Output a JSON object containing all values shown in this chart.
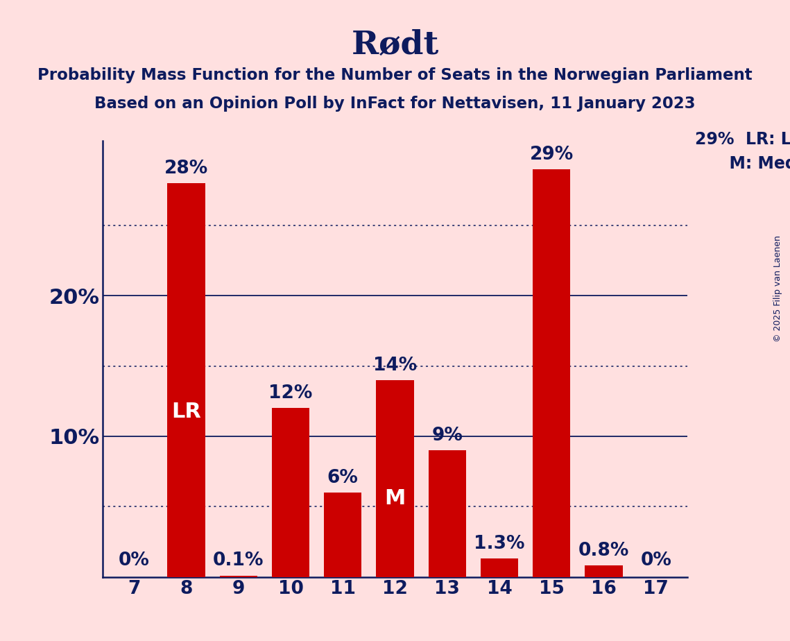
{
  "title": "Rødt",
  "subtitle_line1": "Probability Mass Function for the Number of Seats in the Norwegian Parliament",
  "subtitle_line2": "Based on an Opinion Poll by InFact for Nettavisen, 11 January 2023",
  "copyright": "© 2025 Filip van Laenen",
  "seats": [
    7,
    8,
    9,
    10,
    11,
    12,
    13,
    14,
    15,
    16,
    17
  ],
  "probabilities": [
    0.0,
    28.0,
    0.1,
    12.0,
    6.0,
    14.0,
    9.0,
    1.3,
    29.0,
    0.8,
    0.0
  ],
  "bar_color": "#CC0000",
  "background_color": "#FFE0E0",
  "text_color_dark": "#0D1B5E",
  "text_color_white": "#FFFFFF",
  "lr_seat": 8,
  "median_seat": 12,
  "legend_lr": "LR: Last Result",
  "legend_m": "M: Median",
  "solid_gridlines": [
    10.0,
    20.0
  ],
  "dotted_gridlines": [
    5.0,
    15.0,
    25.0
  ],
  "ylim_max": 31,
  "title_fontsize": 34,
  "subtitle_fontsize": 16.5,
  "bar_label_fontsize": 19,
  "axis_tick_fontsize": 19,
  "legend_fontsize": 17,
  "inside_label_fontsize": 22,
  "ytick_label_fontsize": 22,
  "copyright_fontsize": 9
}
